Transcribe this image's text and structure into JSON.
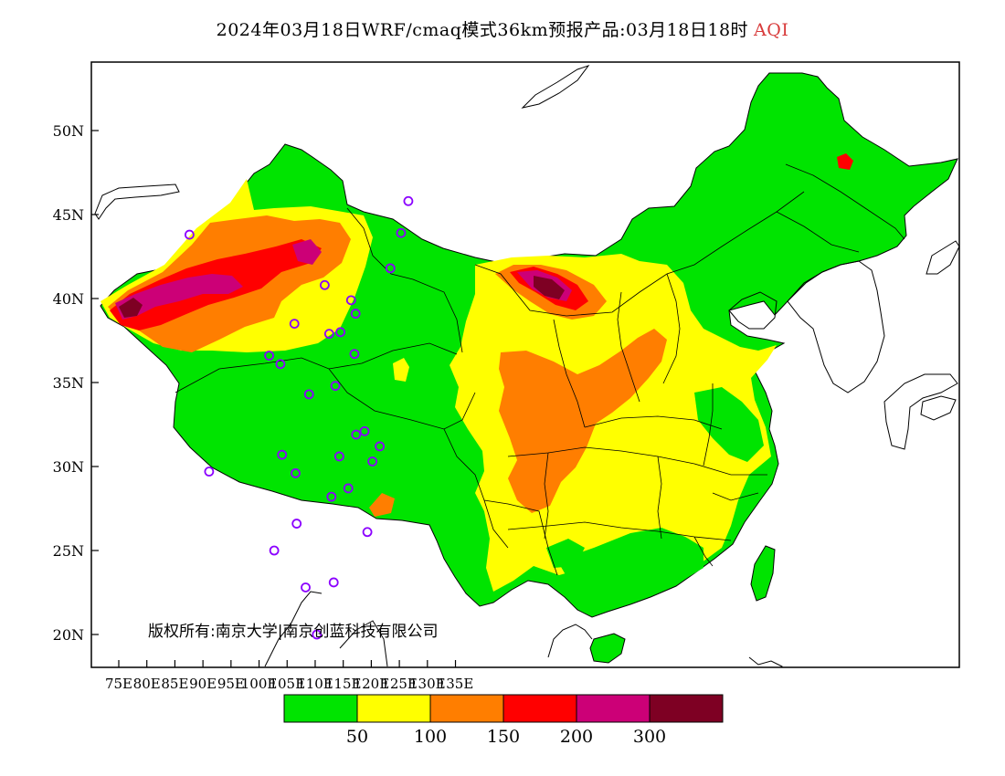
{
  "title": {
    "main": "2024年03月18日WRF/cmaq模式36km预报产品:03月18日18时",
    "variable": "AQI"
  },
  "axes": {
    "lat_labels": [
      "50N",
      "45N",
      "40N",
      "35N",
      "30N",
      "25N",
      "20N"
    ],
    "lon_labels": [
      "75E",
      "80E",
      "85E",
      "90E",
      "95E",
      "100E",
      "105E",
      "110E",
      "115E",
      "120E",
      "125E",
      "130E",
      "135E"
    ],
    "lat_range": [
      18,
      54
    ],
    "lon_range": [
      73,
      135
    ]
  },
  "copyright": "版权所有:南京大学|南京创蓝科技有限公司",
  "legend": {
    "labels": [
      "50",
      "100",
      "150",
      "200",
      "300"
    ],
    "colors": [
      "#00e400",
      "#ffff00",
      "#ff7e00",
      "#ff0000",
      "#cc0077",
      "#7e0023"
    ]
  },
  "colors": {
    "good": "#00e400",
    "moderate": "#ffff00",
    "unhealthy_sensitive": "#ff7e00",
    "unhealthy": "#ff0000",
    "very_unhealthy": "#cc0077",
    "hazardous": "#7e0023",
    "station_marker": "#8b00ff"
  },
  "stations": [
    {
      "lon": 87.6,
      "lat": 43.8
    },
    {
      "lon": 91.1,
      "lat": 29.7
    },
    {
      "lon": 101.8,
      "lat": 36.6
    },
    {
      "lon": 103.8,
      "lat": 36.1
    },
    {
      "lon": 106.3,
      "lat": 38.5
    },
    {
      "lon": 111.7,
      "lat": 40.8
    },
    {
      "lon": 112.5,
      "lat": 37.9
    },
    {
      "lon": 114.5,
      "lat": 38.0
    },
    {
      "lon": 116.4,
      "lat": 39.9
    },
    {
      "lon": 117.2,
      "lat": 39.1
    },
    {
      "lon": 117.0,
      "lat": 36.7
    },
    {
      "lon": 113.6,
      "lat": 34.8
    },
    {
      "lon": 108.9,
      "lat": 34.3
    },
    {
      "lon": 104.1,
      "lat": 30.7
    },
    {
      "lon": 106.5,
      "lat": 29.6
    },
    {
      "lon": 106.7,
      "lat": 26.6
    },
    {
      "lon": 102.7,
      "lat": 25.0
    },
    {
      "lon": 108.3,
      "lat": 22.8
    },
    {
      "lon": 113.3,
      "lat": 23.1
    },
    {
      "lon": 110.3,
      "lat": 20.0
    },
    {
      "lon": 112.9,
      "lat": 28.2
    },
    {
      "lon": 115.9,
      "lat": 28.7
    },
    {
      "lon": 114.3,
      "lat": 30.6
    },
    {
      "lon": 117.3,
      "lat": 31.9
    },
    {
      "lon": 118.8,
      "lat": 32.1
    },
    {
      "lon": 121.5,
      "lat": 31.2
    },
    {
      "lon": 120.2,
      "lat": 30.3
    },
    {
      "lon": 119.3,
      "lat": 26.1
    },
    {
      "lon": 123.4,
      "lat": 41.8
    },
    {
      "lon": 125.3,
      "lat": 43.9
    },
    {
      "lon": 126.6,
      "lat": 45.8
    }
  ]
}
